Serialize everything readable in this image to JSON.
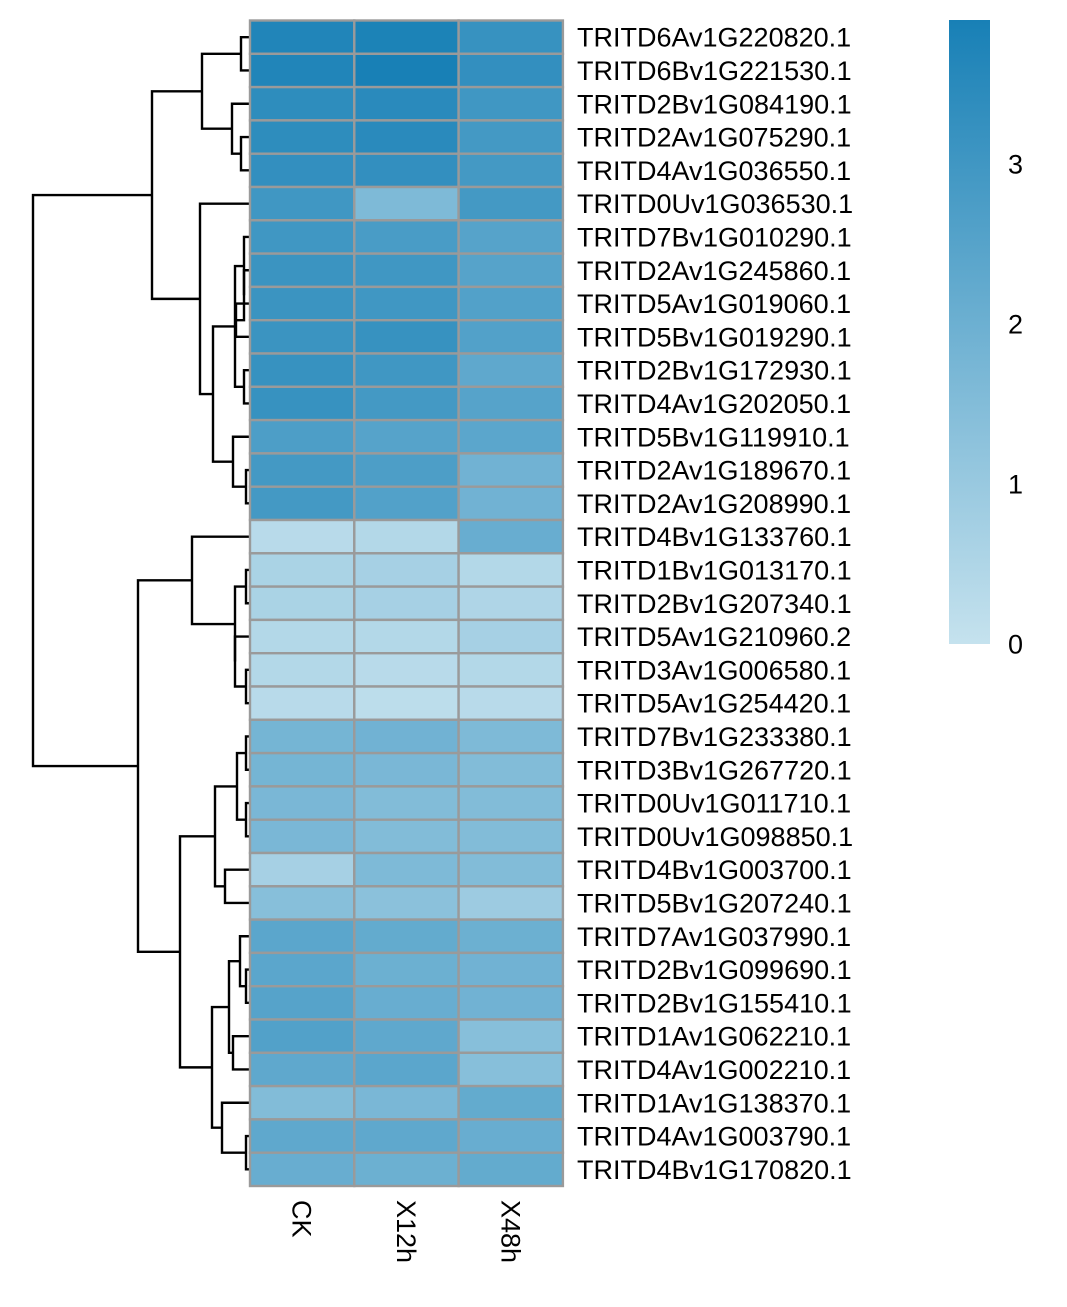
{
  "chart_data": {
    "type": "heatmap",
    "title": "",
    "columns": [
      "CK",
      "X12h",
      "X48h"
    ],
    "rows": [
      "TRITD6Av1G220820.1",
      "TRITD6Bv1G221530.1",
      "TRITD2Bv1G084190.1",
      "TRITD2Av1G075290.1",
      "TRITD4Av1G036550.1",
      "TRITD0Uv1G036530.1",
      "TRITD7Bv1G010290.1",
      "TRITD2Av1G245860.1",
      "TRITD5Av1G019060.1",
      "TRITD5Bv1G019290.1",
      "TRITD2Bv1G172930.1",
      "TRITD4Av1G202050.1",
      "TRITD5Bv1G119910.1",
      "TRITD2Av1G189670.1",
      "TRITD2Av1G208990.1",
      "TRITD4Bv1G133760.1",
      "TRITD1Bv1G013170.1",
      "TRITD2Bv1G207340.1",
      "TRITD5Av1G210960.2",
      "TRITD3Av1G006580.1",
      "TRITD5Av1G254420.1",
      "TRITD7Bv1G233380.1",
      "TRITD3Bv1G267720.1",
      "TRITD0Uv1G011710.1",
      "TRITD0Uv1G098850.1",
      "TRITD4Bv1G003700.1",
      "TRITD5Bv1G207240.1",
      "TRITD7Av1G037990.1",
      "TRITD2Bv1G099690.1",
      "TRITD2Bv1G155410.1",
      "TRITD1Av1G062210.1",
      "TRITD4Av1G002210.1",
      "TRITD1Av1G138370.1",
      "TRITD4Av1G003790.1",
      "TRITD4Bv1G170820.1"
    ],
    "values": [
      [
        3.7,
        3.8,
        3.2
      ],
      [
        3.7,
        3.9,
        3.3
      ],
      [
        3.4,
        3.5,
        3.0
      ],
      [
        3.4,
        3.5,
        2.9
      ],
      [
        3.3,
        3.3,
        2.9
      ],
      [
        3.0,
        1.6,
        2.9
      ],
      [
        3.0,
        2.8,
        2.5
      ],
      [
        3.1,
        3.0,
        2.5
      ],
      [
        3.1,
        3.0,
        2.6
      ],
      [
        3.1,
        3.2,
        2.6
      ],
      [
        3.2,
        3.0,
        2.3
      ],
      [
        3.2,
        2.9,
        2.5
      ],
      [
        2.7,
        2.5,
        2.4
      ],
      [
        2.9,
        2.7,
        1.9
      ],
      [
        2.9,
        2.6,
        1.9
      ],
      [
        0.3,
        0.4,
        2.1
      ],
      [
        0.6,
        0.7,
        0.4
      ],
      [
        0.6,
        0.7,
        0.5
      ],
      [
        0.4,
        0.4,
        0.7
      ],
      [
        0.4,
        0.3,
        0.4
      ],
      [
        0.3,
        0.2,
        0.3
      ],
      [
        1.8,
        1.9,
        1.6
      ],
      [
        1.8,
        1.7,
        1.5
      ],
      [
        1.7,
        1.5,
        1.5
      ],
      [
        1.7,
        1.5,
        1.5
      ],
      [
        0.7,
        1.6,
        1.5
      ],
      [
        1.4,
        1.3,
        0.9
      ],
      [
        2.4,
        2.2,
        2.0
      ],
      [
        2.4,
        2.0,
        1.9
      ],
      [
        2.5,
        2.1,
        1.9
      ],
      [
        2.6,
        2.3,
        1.4
      ],
      [
        2.3,
        2.4,
        1.4
      ],
      [
        1.5,
        1.7,
        2.2
      ],
      [
        2.3,
        2.3,
        2.1
      ],
      [
        2.1,
        2.0,
        2.2
      ]
    ],
    "legend": {
      "placement": "right",
      "range": [
        0,
        3.9
      ],
      "ticks": [
        "0",
        "1",
        "2",
        "3"
      ],
      "low_color": "#c5e2ee",
      "high_color": "#1880b6"
    },
    "row_dendrogram": "left",
    "column_label_orientation": "vertical",
    "cell_border_color": "#9a9a9a"
  }
}
